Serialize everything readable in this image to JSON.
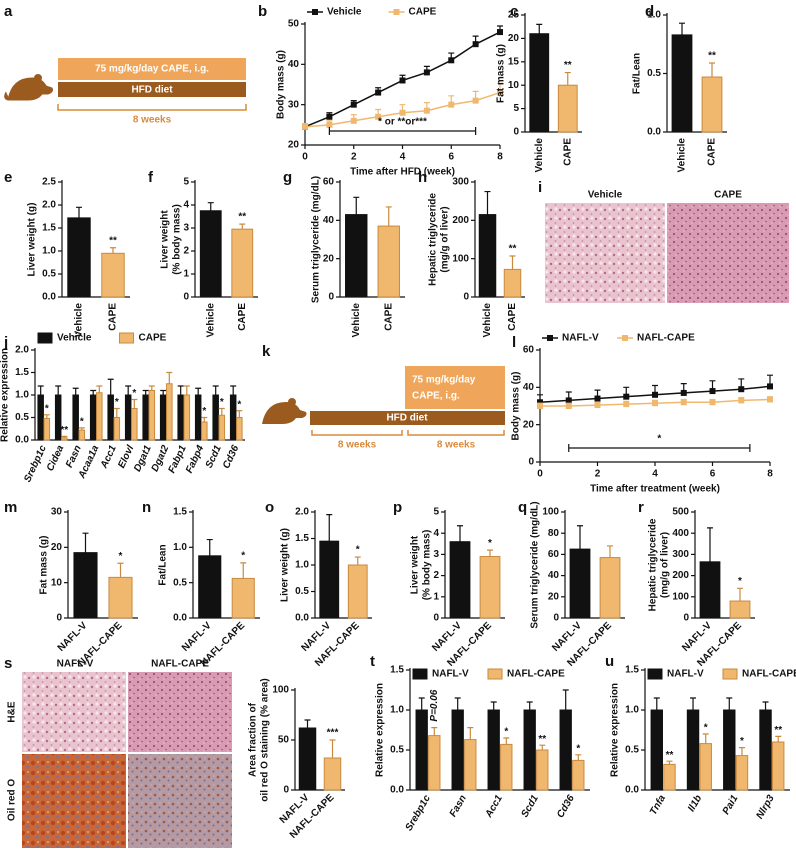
{
  "chart_data": [
    {
      "panel": "b",
      "type": "line",
      "ylabel": "Body mass (g)",
      "xlabel": "Time after HFD (week)",
      "x": [
        0,
        1,
        2,
        3,
        4,
        5,
        6,
        7,
        8
      ],
      "xlim": [
        0,
        8
      ],
      "xticks": [
        0,
        2,
        4,
        6,
        8
      ],
      "ylim": [
        20,
        50
      ],
      "yticks": [
        20,
        30,
        40,
        50
      ],
      "legend": "top",
      "series": [
        {
          "name": "Vehicle",
          "color": "#111111",
          "values": [
            24.5,
            27,
            30,
            33,
            36,
            38,
            41,
            45,
            48
          ],
          "errors": [
            0.8,
            1,
            1,
            1.2,
            1.3,
            1.5,
            1.8,
            2,
            1.5
          ]
        },
        {
          "name": "CAPE",
          "color": "#f0b86e",
          "values": [
            24.5,
            25,
            26,
            27,
            28,
            28.5,
            30,
            31,
            33
          ],
          "errors": [
            0.8,
            1,
            1.5,
            1.8,
            2,
            2,
            2.2,
            2.3,
            2.3
          ]
        }
      ],
      "annotation": {
        "text": "* or **or***",
        "x": [
          1,
          7
        ]
      }
    },
    {
      "panel": "c",
      "type": "bar",
      "ylabel": "Fat mass (g)",
      "categories": [
        "Vehicle",
        "CAPE"
      ],
      "values": [
        21,
        10
      ],
      "errors": [
        2,
        2.7
      ],
      "colors": [
        "#111111",
        "#f0b86e"
      ],
      "stars": [
        null,
        "**"
      ],
      "ylim": [
        0,
        25
      ],
      "yticks": [
        0,
        5,
        10,
        15,
        20,
        25
      ]
    },
    {
      "panel": "d",
      "type": "bar",
      "ylabel": "Fat/Lean",
      "categories": [
        "Vehicle",
        "CAPE"
      ],
      "values": [
        0.83,
        0.47
      ],
      "errors": [
        0.1,
        0.12
      ],
      "colors": [
        "#111111",
        "#f0b86e"
      ],
      "stars": [
        null,
        "**"
      ],
      "ylim": [
        0,
        1.0
      ],
      "yticks": [
        {
          "value": 0,
          "label": "0.0"
        },
        0.5,
        {
          "value": 1,
          "label": "1.0"
        }
      ]
    },
    {
      "panel": "e",
      "type": "bar",
      "ylabel": "Liver weight (g)",
      "categories": [
        "Vehicle",
        "CAPE"
      ],
      "values": [
        1.72,
        0.95
      ],
      "errors": [
        0.23,
        0.12
      ],
      "colors": [
        "#111111",
        "#f0b86e"
      ],
      "stars": [
        null,
        "**"
      ],
      "ylim": [
        0,
        2.5
      ],
      "yticks": [
        {
          "value": 0,
          "label": "0.0"
        },
        0.5,
        {
          "value": 1,
          "label": "1.0"
        },
        1.5,
        {
          "value": 2,
          "label": "2.0"
        },
        2.5
      ]
    },
    {
      "panel": "f",
      "type": "bar",
      "ylabel": [
        "Liver weight",
        "(% body mass)"
      ],
      "categories": [
        "Vehicle",
        "CAPE"
      ],
      "values": [
        3.75,
        2.95
      ],
      "errors": [
        0.35,
        0.22
      ],
      "colors": [
        "#111111",
        "#f0b86e"
      ],
      "stars": [
        null,
        "**"
      ],
      "ylim": [
        0,
        5
      ],
      "yticks": [
        0,
        1,
        2,
        3,
        4,
        5
      ]
    },
    {
      "panel": "g",
      "type": "bar",
      "ylabel": "Serum triglyceride (mg/dL)",
      "categories": [
        "Vehicle",
        "CAPE"
      ],
      "values": [
        43,
        37
      ],
      "errors": [
        9,
        10
      ],
      "colors": [
        "#111111",
        "#f0b86e"
      ],
      "stars": [
        null,
        null
      ],
      "ylim": [
        0,
        60
      ],
      "yticks": [
        0,
        20,
        40,
        60
      ]
    },
    {
      "panel": "h",
      "type": "bar",
      "ylabel": [
        "Hepatic triglyceride",
        "(mg/g of liver)"
      ],
      "categories": [
        "Vehicle",
        "CAPE"
      ],
      "values": [
        215,
        72
      ],
      "errors": [
        60,
        35
      ],
      "colors": [
        "#111111",
        "#f0b86e"
      ],
      "stars": [
        null,
        "**"
      ],
      "ylim": [
        0,
        300
      ],
      "yticks": [
        0,
        100,
        200,
        300
      ]
    },
    {
      "panel": "j",
      "type": "grouped_bar",
      "ylabel": "Relative expression",
      "categories": [
        "Srebp1c",
        "Cidea",
        "Fasn",
        "Acaa1a",
        "Acc1",
        "Elovl",
        "Dgat1",
        "Dgat2",
        "Fabp1",
        "Fabp4",
        "Scd1",
        "Cd36"
      ],
      "ylim": [
        0,
        2.0
      ],
      "yticks": [
        {
          "value": 0,
          "label": "0.0"
        },
        0.5,
        {
          "value": 1,
          "label": "1.0"
        },
        1.5,
        {
          "value": 2,
          "label": "2.0"
        }
      ],
      "legend": "top",
      "series": [
        {
          "name": "Vehicle",
          "color": "#111111",
          "values": [
            1,
            1,
            1,
            1,
            1,
            1,
            1,
            1,
            1,
            1,
            1,
            1
          ],
          "errors": [
            0.2,
            0.2,
            0.15,
            0.1,
            0.35,
            0.2,
            0.1,
            0.1,
            0.2,
            0.15,
            0.2,
            0.2
          ],
          "stars": [
            null,
            null,
            null,
            null,
            null,
            null,
            null,
            null,
            null,
            null,
            null,
            null
          ]
        },
        {
          "name": "CAPE",
          "color": "#f0b86e",
          "values": [
            0.48,
            0.05,
            0.22,
            1.05,
            0.5,
            0.7,
            1.1,
            1.25,
            1.0,
            0.4,
            0.55,
            0.5
          ],
          "errors": [
            0.08,
            0.03,
            0.05,
            0.15,
            0.2,
            0.2,
            0.1,
            0.25,
            0.2,
            0.1,
            0.15,
            0.15
          ],
          "stars": [
            "*",
            "**",
            "*",
            null,
            "*",
            "*",
            null,
            null,
            null,
            "*",
            "*",
            "*"
          ]
        }
      ]
    },
    {
      "panel": "l",
      "type": "line",
      "ylabel": "Body mass (g)",
      "xlabel": "Time after treatment (week)",
      "x": [
        0,
        1,
        2,
        3,
        4,
        5,
        6,
        7,
        8
      ],
      "xlim": [
        0,
        8
      ],
      "xticks": [
        0,
        2,
        4,
        6,
        8
      ],
      "ylim": [
        0,
        60
      ],
      "yticks": [
        0,
        20,
        40,
        60
      ],
      "legend": "top",
      "series": [
        {
          "name": "NAFL-V",
          "color": "#111111",
          "values": [
            32,
            33,
            34,
            35,
            36,
            37,
            38,
            39,
            40.5
          ],
          "errors": [
            4,
            4.5,
            4.5,
            5,
            5,
            5,
            5.5,
            5.5,
            6
          ]
        },
        {
          "name": "NAFL-CAPE",
          "color": "#f0b86e",
          "values": [
            30,
            30,
            30.5,
            31,
            31.5,
            32,
            32,
            33,
            33.5
          ],
          "errors": [
            1.5,
            1.5,
            1.5,
            1.5,
            1.5,
            1.5,
            1.5,
            1.5,
            1.5
          ]
        }
      ],
      "annotation": {
        "text": "*",
        "x": [
          1,
          7.3
        ]
      }
    },
    {
      "panel": "m",
      "type": "bar",
      "ylabel": "Fat mass (g)",
      "categories": [
        "NAFL-V",
        "NAFL-CAPE"
      ],
      "values": [
        18.5,
        11.5
      ],
      "errors": [
        5.5,
        4
      ],
      "colors": [
        "#111111",
        "#f0b86e"
      ],
      "stars": [
        null,
        "*"
      ],
      "ylim": [
        0,
        30
      ],
      "yticks": [
        0,
        10,
        20,
        30
      ]
    },
    {
      "panel": "n",
      "type": "bar",
      "ylabel": "Fat/Lean",
      "categories": [
        "NAFL-V",
        "NAFL-CAPE"
      ],
      "values": [
        0.88,
        0.56
      ],
      "errors": [
        0.23,
        0.22
      ],
      "colors": [
        "#111111",
        "#f0b86e"
      ],
      "stars": [
        null,
        "*"
      ],
      "ylim": [
        0,
        1.5
      ],
      "yticks": [
        {
          "value": 0,
          "label": "0.0"
        },
        0.5,
        {
          "value": 1,
          "label": "1.0"
        },
        1.5
      ]
    },
    {
      "panel": "o",
      "type": "bar",
      "ylabel": "Liver weight (g)",
      "categories": [
        "NAFL-V",
        "NAFL-CAPE"
      ],
      "values": [
        1.45,
        1.0
      ],
      "errors": [
        0.5,
        0.15
      ],
      "colors": [
        "#111111",
        "#f0b86e"
      ],
      "stars": [
        null,
        "*"
      ],
      "ylim": [
        0,
        2.0
      ],
      "yticks": [
        {
          "value": 0,
          "label": "0.0"
        },
        0.5,
        {
          "value": 1,
          "label": "1.0"
        },
        1.5,
        {
          "value": 2,
          "label": "2.0"
        }
      ]
    },
    {
      "panel": "p",
      "type": "bar",
      "ylabel": [
        "Liver weight",
        "(% body mass)"
      ],
      "categories": [
        "NAFL-V",
        "NAFL-CAPE"
      ],
      "values": [
        3.6,
        2.9
      ],
      "errors": [
        0.75,
        0.3
      ],
      "colors": [
        "#111111",
        "#f0b86e"
      ],
      "stars": [
        null,
        "*"
      ],
      "ylim": [
        0,
        5
      ],
      "yticks": [
        0,
        1,
        2,
        3,
        4,
        5
      ]
    },
    {
      "panel": "q",
      "type": "bar",
      "ylabel": "Serum triglyceride (mg/dL)",
      "categories": [
        "NAFL-V",
        "NAFL-CAPE"
      ],
      "values": [
        65,
        57
      ],
      "errors": [
        22,
        11
      ],
      "colors": [
        "#111111",
        "#f0b86e"
      ],
      "stars": [
        null,
        null
      ],
      "ylim": [
        0,
        100
      ],
      "yticks": [
        0,
        20,
        40,
        60,
        80,
        100
      ]
    },
    {
      "panel": "r",
      "type": "bar",
      "ylabel": [
        "Hepatic triglyceride",
        "(mg/g of liver)"
      ],
      "categories": [
        "NAFL-V",
        "NAFL-CAPE"
      ],
      "values": [
        265,
        80
      ],
      "errors": [
        160,
        60
      ],
      "colors": [
        "#111111",
        "#f0b86e"
      ],
      "stars": [
        null,
        "*"
      ],
      "ylim": [
        0,
        500
      ],
      "yticks": [
        0,
        100,
        200,
        300,
        400,
        500
      ]
    },
    {
      "type": "bar",
      "ylabel": [
        "Area fraction of",
        "oil red O staining (% area)"
      ],
      "categories": [
        "NAFL-V",
        "NAFL-CAPE"
      ],
      "values": [
        62,
        32
      ],
      "errors": [
        8,
        18
      ],
      "colors": [
        "#111111",
        "#f0b86e"
      ],
      "stars": [
        null,
        "***"
      ],
      "ylim": [
        0,
        100
      ],
      "yticks": [
        0,
        50,
        100
      ]
    },
    {
      "panel": "t",
      "type": "grouped_bar",
      "ylabel": "Relative expression",
      "categories": [
        "Srebp1c",
        "Fasn",
        "Acc1",
        "Scd1",
        "Cd36"
      ],
      "ylim": [
        0,
        1.5
      ],
      "yticks": [
        {
          "value": 0,
          "label": "0.0"
        },
        0.5,
        {
          "value": 1,
          "label": "1.0"
        },
        1.5
      ],
      "legend": "upper left",
      "series": [
        {
          "name": "NAFL-V",
          "color": "#111111",
          "values": [
            1,
            1,
            1,
            1,
            1
          ],
          "errors": [
            0.15,
            0.15,
            0.1,
            0.1,
            0.25
          ],
          "stars": [
            null,
            null,
            null,
            null,
            null
          ]
        },
        {
          "name": "NAFL-CAPE",
          "color": "#f0b86e",
          "values": [
            0.68,
            0.63,
            0.57,
            0.5,
            0.37
          ],
          "errors": [
            0.1,
            0.15,
            0.08,
            0.06,
            0.07
          ],
          "stars": [
            "P=0.06",
            null,
            "*",
            "**",
            "*"
          ]
        }
      ]
    },
    {
      "panel": "u",
      "type": "grouped_bar",
      "ylabel": "Relative expression",
      "categories": [
        "Tnfa",
        "Il1b",
        "Pai1",
        "Nlrp3"
      ],
      "ylim": [
        0,
        1.5
      ],
      "yticks": [
        {
          "value": 0,
          "label": "0.0"
        },
        0.5,
        {
          "value": 1,
          "label": "1.0"
        },
        1.5
      ],
      "legend": "upper left",
      "series": [
        {
          "name": "NAFL-V",
          "color": "#111111",
          "values": [
            1,
            1,
            1,
            1
          ],
          "errors": [
            0.15,
            0.15,
            0.15,
            0.1
          ],
          "stars": [
            null,
            null,
            null,
            null
          ]
        },
        {
          "name": "NAFL-CAPE",
          "color": "#f0b86e",
          "values": [
            0.32,
            0.58,
            0.43,
            0.6
          ],
          "errors": [
            0.04,
            0.12,
            0.1,
            0.07
          ],
          "stars": [
            "**",
            "*",
            "*",
            "**"
          ]
        }
      ]
    }
  ],
  "schematic_a": {
    "panel": "a",
    "dose": "75 mg/kg/day CAPE, i.g.",
    "diet": "HFD diet",
    "duration": "8 weeks"
  },
  "schematic_k": {
    "panel": "k",
    "dose": [
      "75 mg/kg/day",
      "CAPE, i.g."
    ],
    "diet": "HFD diet",
    "durations": [
      "8 weeks",
      "8 weeks"
    ]
  },
  "micrographs_i": {
    "panel": "i",
    "columns": [
      "Vehicle",
      "CAPE"
    ]
  },
  "micrographs_s": {
    "panel": "s",
    "columns": [
      "NAFL-V",
      "NAFL-CAPE"
    ],
    "rows": [
      "H&E",
      "Oil red O"
    ]
  }
}
